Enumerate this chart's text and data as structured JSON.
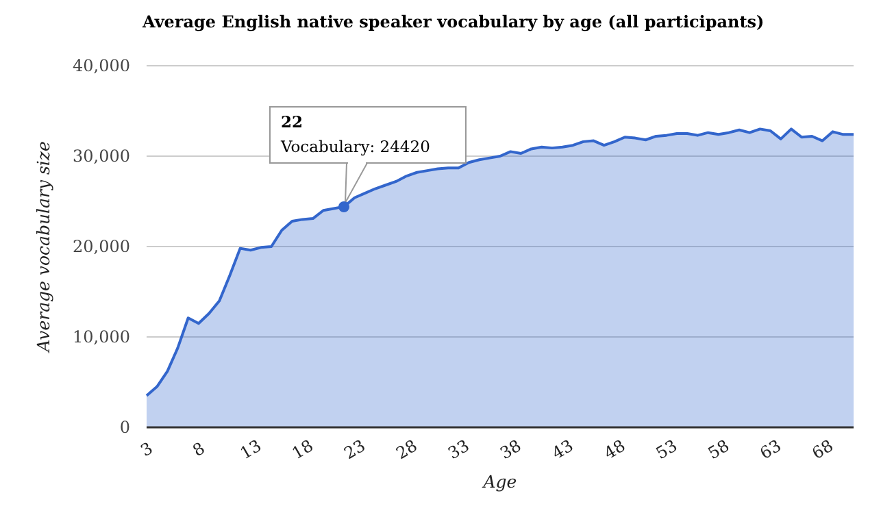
{
  "chart_data": {
    "type": "area",
    "title": "Average English native speaker vocabulary by age (all participants)",
    "xlabel": "Age",
    "ylabel": "Average vocabulary size",
    "x": [
      3,
      4,
      5,
      6,
      7,
      8,
      9,
      10,
      11,
      12,
      13,
      14,
      15,
      16,
      17,
      18,
      19,
      20,
      21,
      22,
      23,
      24,
      25,
      26,
      27,
      28,
      29,
      30,
      31,
      32,
      33,
      34,
      35,
      36,
      37,
      38,
      39,
      40,
      41,
      42,
      43,
      44,
      45,
      46,
      47,
      48,
      49,
      50,
      51,
      52,
      53,
      54,
      55,
      56,
      57,
      58,
      59,
      60,
      61,
      62,
      63,
      64,
      65,
      66,
      67,
      68,
      69,
      70,
      71
    ],
    "series": [
      {
        "color": "#3366cc",
        "values": [
          3500,
          4500,
          6200,
          8800,
          12100,
          11500,
          12600,
          14000,
          16800,
          19800,
          19600,
          19900,
          20000,
          21800,
          22800,
          23000,
          23100,
          24000,
          24200,
          24420,
          25400,
          25900,
          26400,
          26800,
          27200,
          27800,
          28200,
          28400,
          28600,
          28700,
          28700,
          29300,
          29600,
          29800,
          30000,
          30500,
          30300,
          30800,
          31000,
          30900,
          31000,
          31200,
          31600,
          31700,
          31200,
          31600,
          32100,
          32000,
          31800,
          32200,
          32300,
          32500,
          32500,
          32300,
          32600,
          32400,
          32600,
          32900,
          32600,
          33000,
          32800,
          31900,
          33000,
          32100,
          32200,
          31700,
          32700,
          32400,
          32400
        ]
      }
    ],
    "xlim": [
      3,
      71
    ],
    "xticks": [
      3,
      8,
      13,
      18,
      23,
      28,
      33,
      38,
      43,
      48,
      53,
      58,
      63,
      68
    ],
    "ylim": [
      0,
      40000
    ],
    "yticks": [
      {
        "value": 0,
        "label": "0"
      },
      {
        "value": 10000,
        "label": "10,000"
      },
      {
        "value": 20000,
        "label": "20,000"
      },
      {
        "value": 30000,
        "label": "30,000"
      },
      {
        "value": 40000,
        "label": "40,000"
      }
    ],
    "grid": "y",
    "annotations": [
      "22",
      "Vocabulary: 24420"
    ]
  }
}
